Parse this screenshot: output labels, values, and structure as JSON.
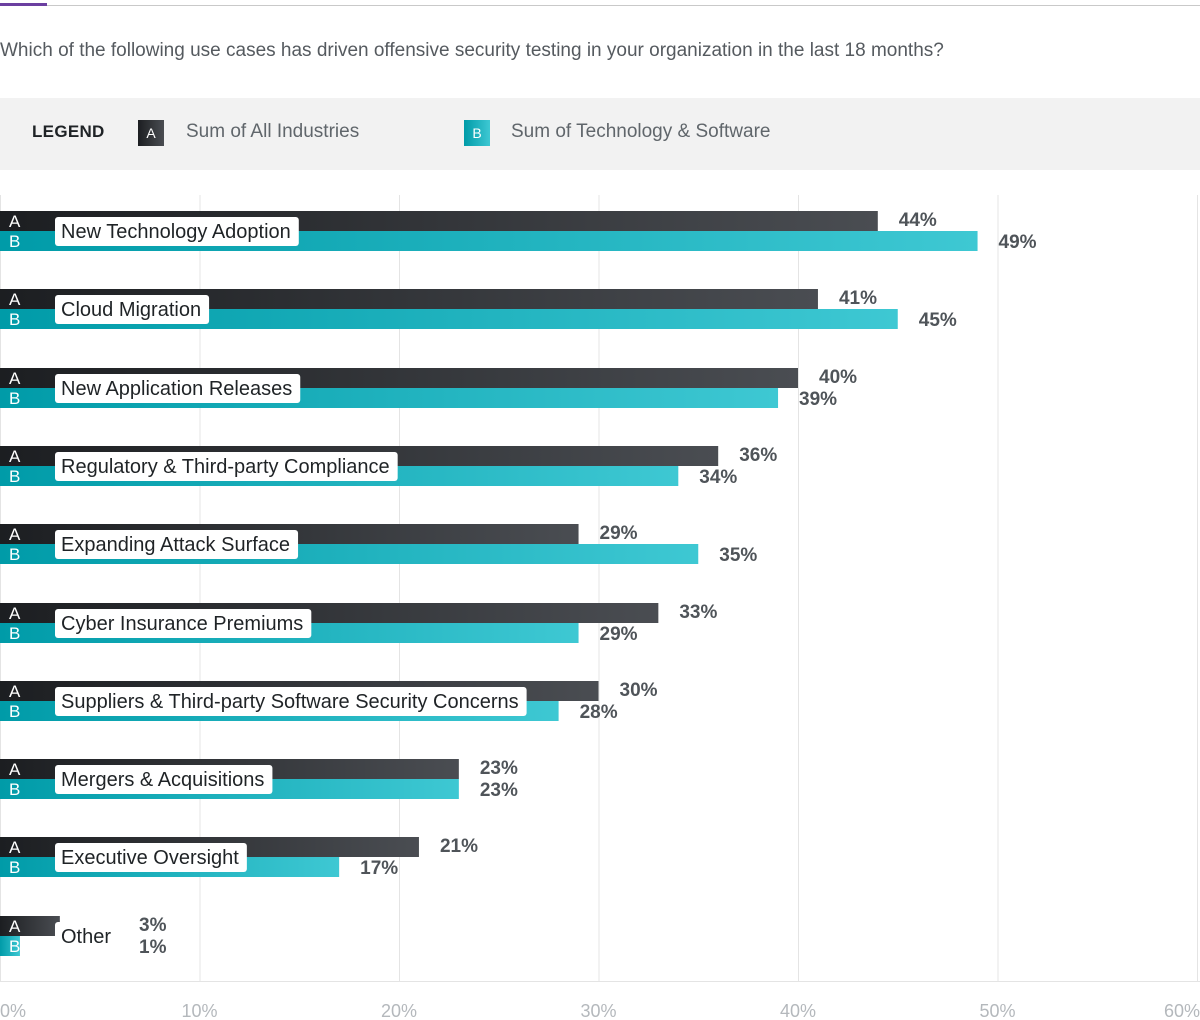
{
  "question": "Which of the following use cases has driven offensive security testing in your organization in the last 18 months?",
  "legend": {
    "title": "LEGEND",
    "a": {
      "key": "A",
      "label": "Sum of All Industries"
    },
    "b": {
      "key": "B",
      "label": "Sum of Technology & Software"
    }
  },
  "colors": {
    "a_start": "#1c1e21",
    "a_end": "#4a4d52",
    "b_start": "#009ba8",
    "b_end": "#3ec8d3",
    "value_text": "#4f5459",
    "axis_text": "#b4b8bc",
    "grid": "#e4e4e4",
    "accent": "#6b3fa0"
  },
  "chart_data": {
    "type": "bar",
    "orientation": "horizontal",
    "title": "Which of the following use cases has driven offensive security testing in your organization in the last 18 months?",
    "xlim": [
      0,
      60
    ],
    "x_ticks": [
      "0%",
      "10%",
      "20%",
      "30%",
      "40%",
      "50%",
      "60%"
    ],
    "x_tick_values": [
      0,
      10,
      20,
      30,
      40,
      50,
      60
    ],
    "categories": [
      "New Technology Adoption",
      "Cloud Migration",
      "New Application Releases",
      "Regulatory & Third-party Compliance",
      "Expanding Attack Surface",
      "Cyber Insurance Premiums",
      "Suppliers & Third-party Software Security Concerns",
      "Mergers & Acquisitions",
      "Executive Oversight",
      "Other"
    ],
    "series": [
      {
        "key": "A",
        "name": "Sum of All Industries",
        "values": [
          44,
          41,
          40,
          36,
          29,
          33,
          30,
          23,
          21,
          3
        ],
        "labels": [
          "44%",
          "41%",
          "40%",
          "36%",
          "29%",
          "33%",
          "30%",
          "23%",
          "21%",
          "3%"
        ]
      },
      {
        "key": "B",
        "name": "Sum of Technology & Software",
        "values": [
          49,
          45,
          39,
          34,
          35,
          29,
          28,
          23,
          17,
          1
        ],
        "labels": [
          "49%",
          "45%",
          "39%",
          "34%",
          "35%",
          "29%",
          "28%",
          "23%",
          "17%",
          "1%"
        ]
      }
    ]
  }
}
